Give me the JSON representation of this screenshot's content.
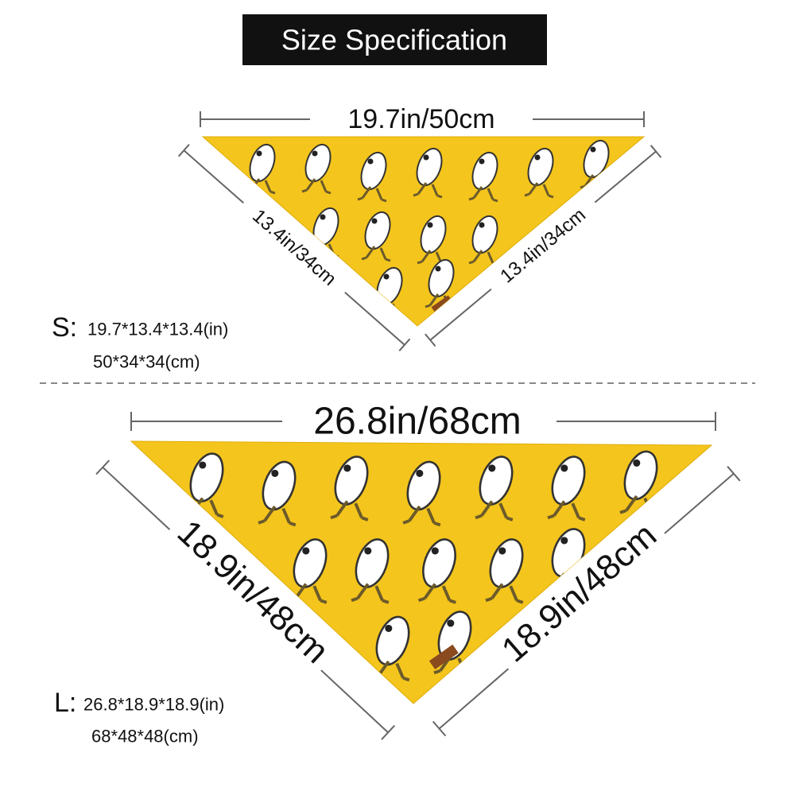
{
  "header": {
    "title": "Size Specification"
  },
  "small": {
    "width": "19.7in/50cm",
    "left_side": "13.4in/34cm",
    "right_side": "13.4in/34cm",
    "prefix": "S:",
    "inches": "19.7*13.4*13.4(in)",
    "centimeters": "50*34*34(cm)"
  },
  "large": {
    "width": "26.8in/68cm",
    "left_side": "18.9in/48cm",
    "right_side": "18.9in/48cm",
    "prefix": "L:",
    "inches": "26.8*18.9*18.9(in)",
    "centimeters": "68*48*48(cm)"
  }
}
